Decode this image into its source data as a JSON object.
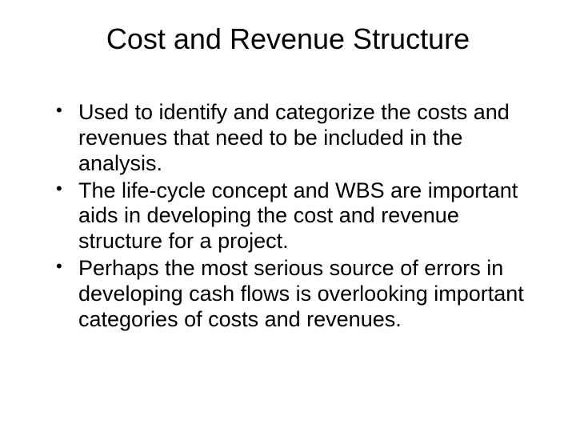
{
  "slide": {
    "title": "Cost and Revenue Structure",
    "bullets": [
      "Used to identify and categorize the costs and revenues that need to be included in the analysis.",
      "The life-cycle concept and WBS are important aids in developing the cost and revenue structure for a project.",
      "Perhaps the most serious source of errors in developing cash flows is overlooking important categories of costs and revenues."
    ],
    "title_fontsize": 36,
    "body_fontsize": 27,
    "background_color": "#ffffff",
    "text_color": "#000000"
  }
}
